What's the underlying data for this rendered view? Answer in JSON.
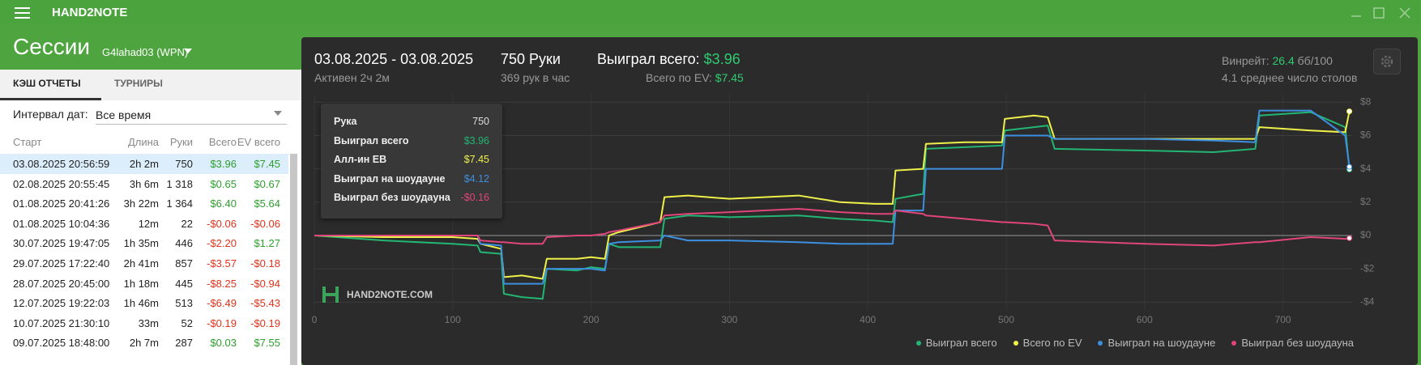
{
  "app": {
    "title": "HAND2NOTE"
  },
  "sidebar": {
    "heading": "Сессии",
    "account": "G4lahad03 (WPN)",
    "tabs": [
      "КЭШ ОТЧЕТЫ",
      "ТУРНИРЫ"
    ],
    "interval_label": "Интервал дат:",
    "interval_value": "Все время",
    "table": {
      "columns": [
        "Старт",
        "Длина",
        "Руки",
        "Всего",
        "EV всего"
      ],
      "rows": [
        [
          "03.08.2025 20:56:59",
          "2h 2m",
          "750",
          "$3.96",
          "$7.45"
        ],
        [
          "02.08.2025 20:55:45",
          "3h 6m",
          "1 318",
          "$0.65",
          "$0.67"
        ],
        [
          "01.08.2025 20:41:26",
          "3h 22m",
          "1 364",
          "$6.40",
          "$5.64"
        ],
        [
          "01.08.2025 10:04:36",
          "12m",
          "22",
          "-$0.06",
          "-$0.06"
        ],
        [
          "30.07.2025 19:47:05",
          "1h 35m",
          "446",
          "-$2.20",
          "$1.27"
        ],
        [
          "29.07.2025 17:22:40",
          "2h 41m",
          "857",
          "-$3.57",
          "-$0.18"
        ],
        [
          "28.07.2025 20:45:00",
          "1h 18m",
          "445",
          "-$8.25",
          "-$0.94"
        ],
        [
          "12.07.2025 19:22:03",
          "1h 46m",
          "513",
          "-$6.49",
          "-$5.43"
        ],
        [
          "10.07.2025 21:30:10",
          "33m",
          "52",
          "-$0.19",
          "-$0.19"
        ],
        [
          "09.07.2025 18:48:00",
          "2h 7m",
          "287",
          "$0.03",
          "$7.55"
        ]
      ]
    }
  },
  "header": {
    "date_range": "03.08.2025 - 03.08.2025",
    "active": "Активен 2ч 2м",
    "hands": "750 Руки",
    "hands_per_hour": "369 рук в час",
    "won_label": "Выиграл всего:",
    "won_value": "$3.96",
    "ev_label": "Всего по EV:",
    "ev_value": "$7.45",
    "winrate_label": "Винрейт:",
    "winrate_value": "26.4",
    "winrate_unit": "бб/100",
    "tables": "4.1 среднее число столов"
  },
  "tooltip": {
    "rows": [
      [
        "Рука",
        "750"
      ],
      [
        "Выиграл всего",
        "$3.96"
      ],
      [
        "Алл-ин EB",
        "$7.45"
      ],
      [
        "Выиграл на шоудауне",
        "$4.12"
      ],
      [
        "Выиграл без шоудауна",
        "-$0.16"
      ]
    ]
  },
  "watermark": "HAND2NOTE.COM",
  "chart_data": {
    "type": "line",
    "x": [
      0,
      50,
      100,
      118,
      120,
      135,
      137,
      150,
      165,
      168,
      190,
      200,
      210,
      213,
      220,
      250,
      253,
      270,
      300,
      350,
      380,
      405,
      418,
      420,
      440,
      442,
      470,
      497,
      499,
      520,
      530,
      535,
      600,
      650,
      680,
      683,
      720,
      745,
      748
    ],
    "series": [
      {
        "name": "Выиграл всего",
        "color": "#22b573",
        "values": [
          0,
          -0.3,
          -0.5,
          -0.6,
          -1.0,
          -1.1,
          -3.5,
          -3.7,
          -3.8,
          -2.0,
          -2.1,
          -1.9,
          -2.0,
          -0.5,
          -0.7,
          -0.7,
          1.0,
          1.2,
          1.1,
          1.2,
          1.0,
          0.9,
          0.8,
          2.2,
          2.5,
          5.2,
          5.3,
          5.4,
          6.3,
          6.5,
          6.6,
          5.2,
          5.1,
          5.0,
          5.2,
          7.2,
          7.4,
          6.5,
          3.96
        ]
      },
      {
        "name": "Всего по EV",
        "color": "#f0f04a",
        "values": [
          0,
          -0.1,
          -0.1,
          -0.2,
          -0.5,
          -0.8,
          -2.5,
          -2.4,
          -2.6,
          -1.4,
          -1.4,
          -1.3,
          -1.4,
          0.0,
          0.2,
          0.8,
          2.3,
          2.4,
          2.2,
          2.4,
          2.0,
          1.9,
          1.9,
          3.9,
          4.0,
          5.5,
          5.6,
          5.6,
          7.0,
          7.2,
          7.1,
          5.8,
          5.8,
          5.8,
          5.8,
          6.5,
          6.3,
          6.2,
          7.45
        ]
      },
      {
        "name": "Выиграл на шоудауне",
        "color": "#3d8fe0",
        "values": [
          0,
          0,
          0,
          0,
          -0.5,
          -0.6,
          -2.9,
          -2.9,
          -2.9,
          -2.0,
          -2.0,
          -2.0,
          -2.1,
          -0.5,
          -0.4,
          -0.3,
          0,
          -0.3,
          -0.3,
          -0.4,
          -0.5,
          -0.5,
          -0.5,
          1.5,
          1.5,
          4.0,
          4.0,
          4.0,
          6.0,
          6.0,
          6.0,
          5.8,
          5.8,
          5.7,
          5.6,
          7.5,
          7.5,
          6.0,
          4.12
        ]
      },
      {
        "name": "Выиграл без шоудауна",
        "color": "#e0457b",
        "values": [
          0,
          0,
          0,
          0,
          -0.3,
          -0.4,
          -0.4,
          -0.5,
          -0.5,
          -0.1,
          0,
          0,
          0.1,
          0.2,
          0.3,
          0.8,
          1.2,
          1.3,
          1.4,
          1.6,
          1.4,
          1.3,
          1.3,
          1.5,
          1.3,
          1.2,
          1.0,
          0.8,
          0.8,
          0.7,
          0.6,
          -0.3,
          -0.5,
          -0.6,
          -0.4,
          -0.4,
          -0.1,
          -0.2,
          -0.16
        ]
      }
    ],
    "xlim": [
      0,
      750
    ],
    "ylim": [
      -4.5,
      8.5
    ],
    "xticks": [
      0,
      100,
      200,
      300,
      400,
      500,
      600,
      700
    ],
    "yticks": [
      {
        "value": 8,
        "label": "$8"
      },
      {
        "value": 6,
        "label": "$6"
      },
      {
        "value": 4,
        "label": "$4"
      },
      {
        "value": 2,
        "label": "$2"
      },
      {
        "value": 0,
        "label": "$0"
      },
      {
        "value": -2,
        "label": "-$2"
      },
      {
        "value": -4,
        "label": "-$4"
      }
    ],
    "grid": true,
    "legend": "bottom-right"
  }
}
